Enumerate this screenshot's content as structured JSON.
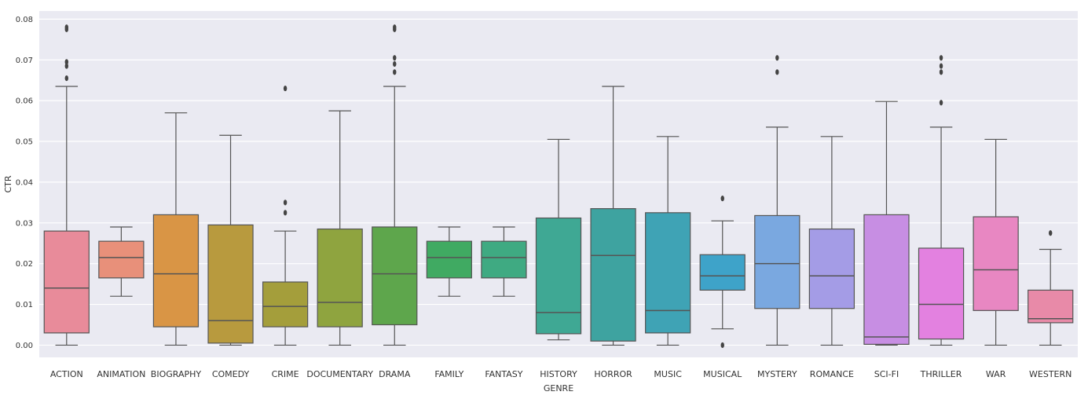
{
  "chart_data": {
    "type": "box",
    "xlabel": "GENRE",
    "ylabel": "CTR",
    "ylim": [
      -0.003,
      0.082
    ],
    "yticks": [
      "0.00",
      "0.01",
      "0.02",
      "0.03",
      "0.04",
      "0.05",
      "0.06",
      "0.07",
      "0.08"
    ],
    "grid": true,
    "background": "#eaeaf2",
    "categories": [
      {
        "label": "ACTION",
        "color": "#e88b9a",
        "whislo": 0.0,
        "q1": 0.003,
        "median": 0.014,
        "q3": 0.028,
        "whishi": 0.0635,
        "fliers": [
          0.0655,
          0.0685,
          0.0695,
          0.0775,
          0.078
        ]
      },
      {
        "label": "ANIMATION",
        "color": "#e8907a",
        "whislo": 0.012,
        "q1": 0.0165,
        "median": 0.0215,
        "q3": 0.0255,
        "whishi": 0.029,
        "fliers": []
      },
      {
        "label": "BIOGRAPHY",
        "color": "#d99545",
        "whislo": 0.0,
        "q1": 0.0045,
        "median": 0.0175,
        "q3": 0.032,
        "whishi": 0.057,
        "fliers": []
      },
      {
        "label": "COMEDY",
        "color": "#b89a3e",
        "whislo": 0.0,
        "q1": 0.0005,
        "median": 0.006,
        "q3": 0.0295,
        "whishi": 0.0515,
        "fliers": []
      },
      {
        "label": "CRIME",
        "color": "#a49e3b",
        "whislo": 0.0,
        "q1": 0.0045,
        "median": 0.0095,
        "q3": 0.0155,
        "whishi": 0.028,
        "fliers": [
          0.0325,
          0.035,
          0.063
        ]
      },
      {
        "label": "DOCUMENTARY",
        "color": "#8fa43f",
        "whislo": 0.0,
        "q1": 0.0045,
        "median": 0.0105,
        "q3": 0.0285,
        "whishi": 0.0575,
        "fliers": []
      },
      {
        "label": "DRAMA",
        "color": "#5ea64c",
        "whislo": 0.0,
        "q1": 0.005,
        "median": 0.0175,
        "q3": 0.029,
        "whishi": 0.0635,
        "fliers": [
          0.067,
          0.069,
          0.0705,
          0.0775,
          0.078
        ]
      },
      {
        "label": "FAMILY",
        "color": "#40aa62",
        "whislo": 0.012,
        "q1": 0.0165,
        "median": 0.0215,
        "q3": 0.0255,
        "whishi": 0.029,
        "fliers": []
      },
      {
        "label": "FANTASY",
        "color": "#3faa82",
        "whislo": 0.012,
        "q1": 0.0165,
        "median": 0.0215,
        "q3": 0.0255,
        "whishi": 0.029,
        "fliers": []
      },
      {
        "label": "HISTORY",
        "color": "#3fa894",
        "whislo": 0.0013,
        "q1": 0.0028,
        "median": 0.008,
        "q3": 0.0312,
        "whishi": 0.0505,
        "fliers": []
      },
      {
        "label": "HORROR",
        "color": "#3ea3a0",
        "whislo": 0.0,
        "q1": 0.001,
        "median": 0.022,
        "q3": 0.0335,
        "whishi": 0.0635,
        "fliers": []
      },
      {
        "label": "MUSIC",
        "color": "#3fa3b5",
        "whislo": 0.0,
        "q1": 0.003,
        "median": 0.0085,
        "q3": 0.0325,
        "whishi": 0.0512,
        "fliers": []
      },
      {
        "label": "MUSICAL",
        "color": "#3ea3c9",
        "whislo": 0.004,
        "q1": 0.0135,
        "median": 0.017,
        "q3": 0.0222,
        "whishi": 0.0305,
        "fliers": [
          0.0,
          0.036
        ]
      },
      {
        "label": "MYSTERY",
        "color": "#7aa8e0",
        "whislo": 0.0,
        "q1": 0.009,
        "median": 0.02,
        "q3": 0.0318,
        "whishi": 0.0535,
        "fliers": [
          0.067,
          0.0705
        ]
      },
      {
        "label": "ROMANCE",
        "color": "#a49ce6",
        "whislo": 0.0,
        "q1": 0.009,
        "median": 0.017,
        "q3": 0.0285,
        "whishi": 0.0512,
        "fliers": []
      },
      {
        "label": "SCI-FI",
        "color": "#c78ee3",
        "whislo": 0.0,
        "q1": 0.0002,
        "median": 0.002,
        "q3": 0.032,
        "whishi": 0.0598,
        "fliers": []
      },
      {
        "label": "THRILLER",
        "color": "#e381e0",
        "whislo": 0.0,
        "q1": 0.0015,
        "median": 0.01,
        "q3": 0.0238,
        "whishi": 0.0535,
        "fliers": [
          0.0595,
          0.067,
          0.0685,
          0.0705
        ]
      },
      {
        "label": "WAR",
        "color": "#e887c2",
        "whislo": 0.0,
        "q1": 0.0085,
        "median": 0.0185,
        "q3": 0.0315,
        "whishi": 0.0505,
        "fliers": []
      },
      {
        "label": "WESTERN",
        "color": "#e88aa8",
        "whislo": 0.0,
        "q1": 0.0055,
        "median": 0.0065,
        "q3": 0.0135,
        "whishi": 0.0235,
        "fliers": [
          0.0275
        ]
      }
    ]
  }
}
